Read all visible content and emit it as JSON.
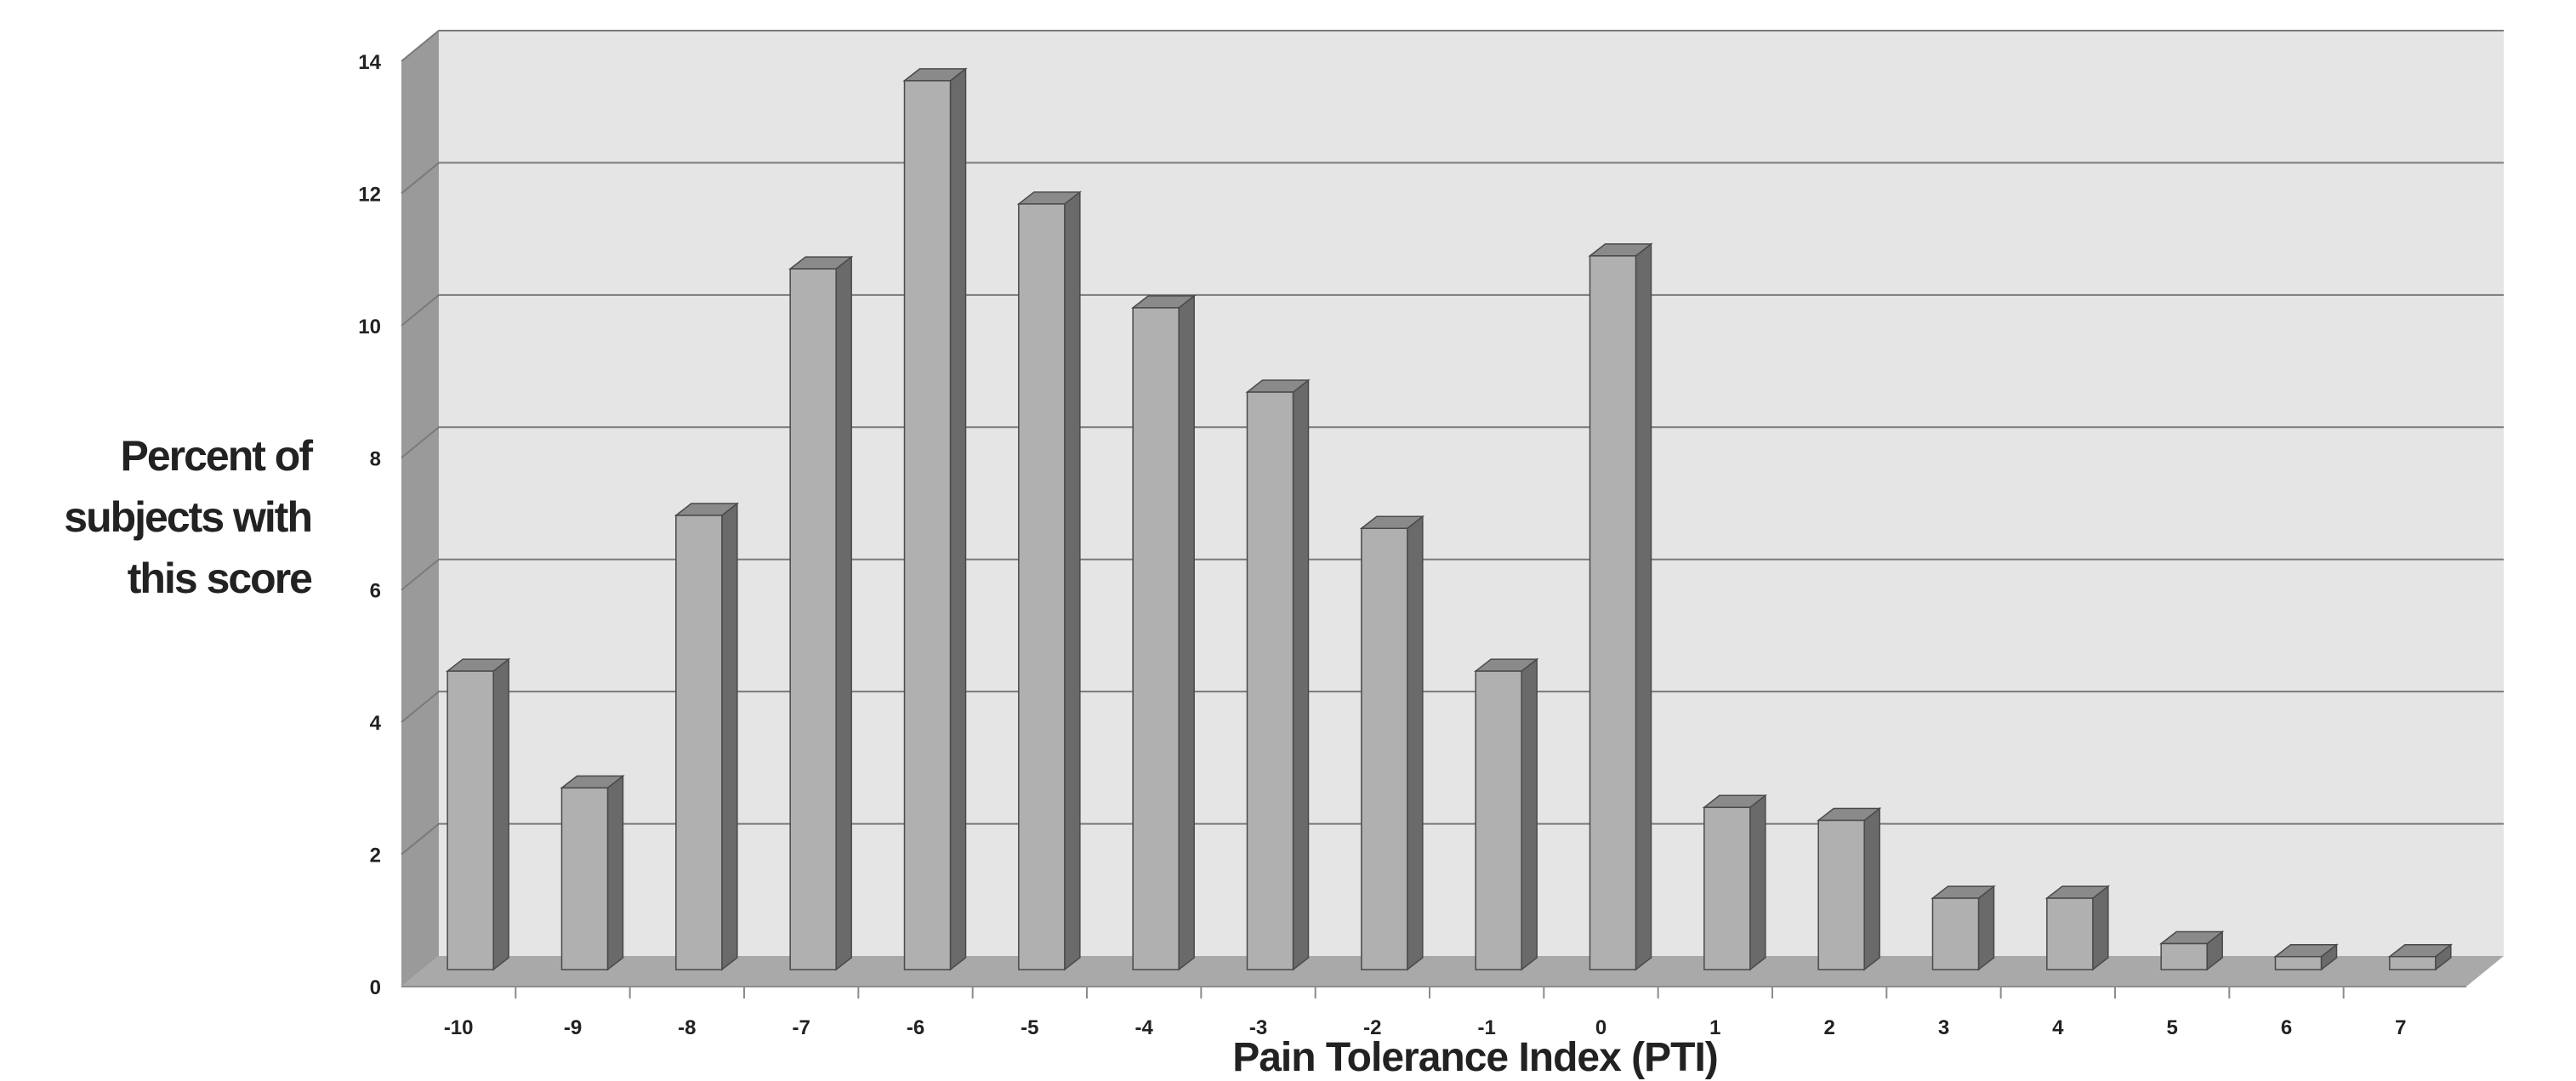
{
  "chart_data": {
    "type": "bar",
    "title": "",
    "xlabel": "Pain Tolerance Index (PTI)",
    "ylabel_lines": [
      "Percent of",
      "subjects with",
      "this score"
    ],
    "categories": [
      "-10",
      "-9",
      "-8",
      "-7",
      "-6",
      "-5",
      "-4",
      "-3",
      "-2",
      "-1",
      "0",
      "1",
      "2",
      "3",
      "4",
      "5",
      "6",
      "7"
    ],
    "values": [
      4.6,
      2.8,
      7.0,
      10.8,
      13.7,
      11.8,
      10.2,
      8.9,
      6.8,
      4.6,
      11.0,
      2.5,
      2.3,
      1.1,
      1.1,
      0.4,
      0.2,
      0.2
    ],
    "ylim": [
      0,
      14
    ],
    "yticks": [
      0,
      2,
      4,
      6,
      8,
      10,
      12,
      14
    ],
    "grid": true,
    "legend": "none",
    "colors": {
      "bar_front": "#b0b0b0",
      "bar_side": "#6a6a6a",
      "bar_top": "#8a8a8a",
      "wall": "#e5e5e5",
      "side_wall": "#9a9a9a",
      "floor": "#a9a9a9",
      "gridline": "#7a7a7a"
    }
  }
}
